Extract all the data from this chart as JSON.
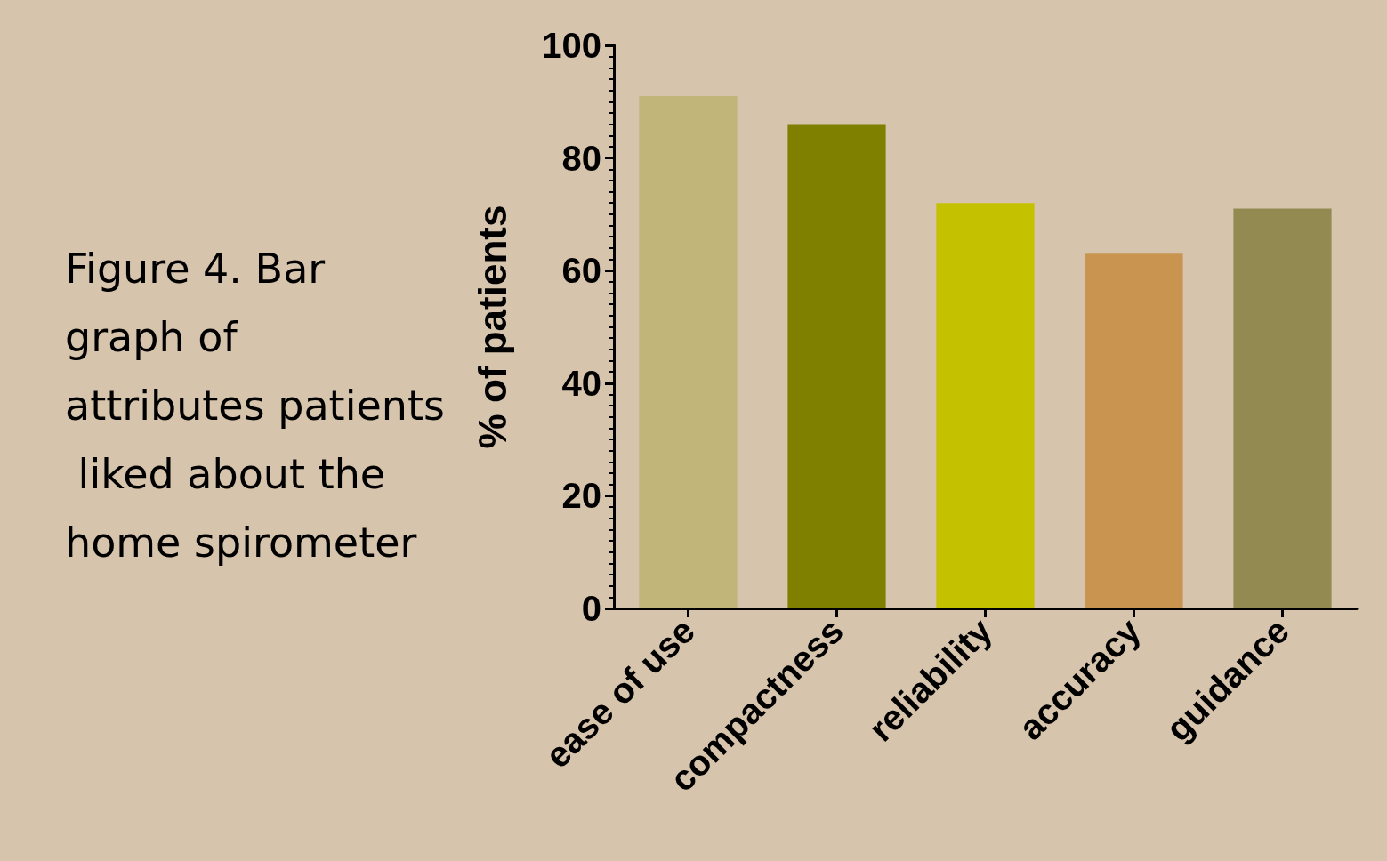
{
  "chart_data": {
    "type": "bar",
    "title": "Figure 4. Bar graph of attributes patients liked about the home spirometer",
    "ylabel": "% of patients",
    "categories": [
      "ease of use",
      "compactness",
      "reliability",
      "accuracy",
      "guidance"
    ],
    "values": [
      91,
      86,
      72,
      63,
      71
    ],
    "colors": [
      "#c2b57a",
      "#808000",
      "#c4c200",
      "#c8944f",
      "#938a52"
    ],
    "ylim": [
      0,
      100
    ],
    "yticks": [
      0,
      20,
      40,
      60,
      80,
      100
    ]
  }
}
